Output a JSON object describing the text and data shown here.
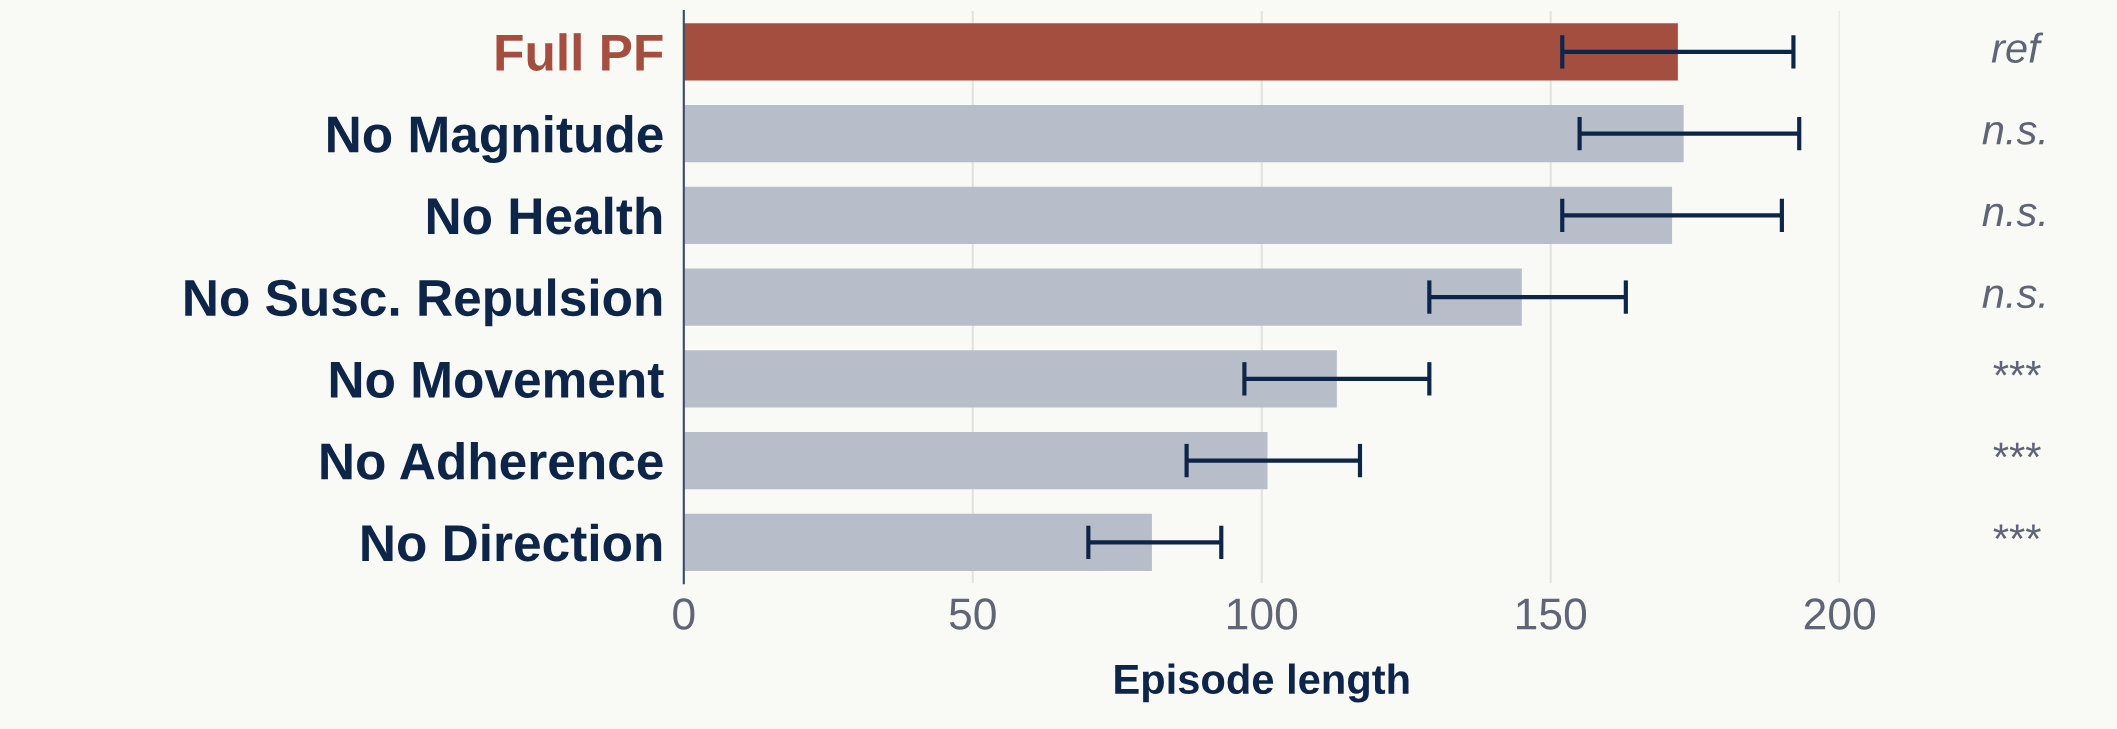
{
  "chart_data": {
    "type": "bar",
    "orientation": "horizontal",
    "xlabel": "Episode length",
    "categories": [
      "Full PF",
      "No Magnitude",
      "No Health",
      "No Susc. Repulsion",
      "No Movement",
      "No Adherence",
      "No Direction"
    ],
    "values": [
      172,
      173,
      171,
      145,
      113,
      101,
      81
    ],
    "errors": [
      [
        152,
        192
      ],
      [
        155,
        193
      ],
      [
        152,
        190
      ],
      [
        129,
        163
      ],
      [
        97,
        129
      ],
      [
        87,
        117
      ],
      [
        70,
        93
      ]
    ],
    "colors": [
      "#a34e3e",
      "#b8bec9",
      "#b8bec9",
      "#b8bec9",
      "#b8bec9",
      "#b8bec9",
      "#b8bec9"
    ],
    "xlim": [
      0,
      200
    ],
    "xticks": [
      0,
      50,
      100,
      150,
      200
    ],
    "grid": "x",
    "annotations": [
      "ref",
      "n.s.",
      "n.s.",
      "n.s.",
      "***",
      "***",
      "***"
    ]
  }
}
